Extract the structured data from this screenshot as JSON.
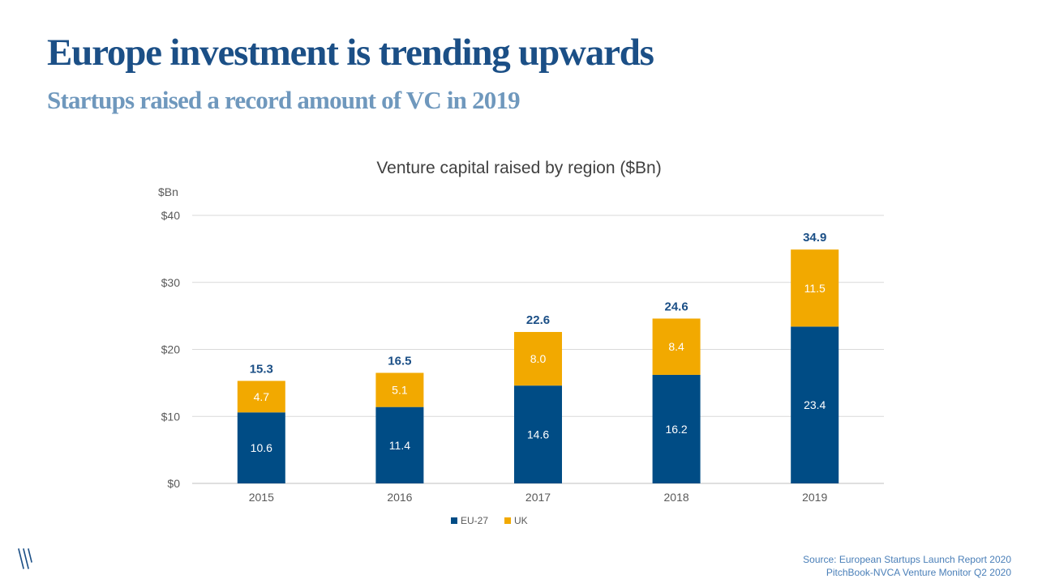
{
  "header": {
    "title": "Europe investment is trending upwards",
    "subtitle": "Startups raised a record amount of VC in 2019"
  },
  "chart_data": {
    "type": "bar",
    "stacked": true,
    "title": "Venture capital raised by region ($Bn)",
    "ylabel": "$Bn",
    "ylim": [
      0,
      40
    ],
    "yticks": [
      "$0",
      "$10",
      "$20",
      "$30",
      "$40"
    ],
    "grid": true,
    "legend_position": "bottom",
    "categories": [
      "2015",
      "2016",
      "2017",
      "2018",
      "2019"
    ],
    "series": [
      {
        "name": "EU-27",
        "color": "#004c85",
        "values": [
          10.6,
          11.4,
          14.6,
          16.2,
          23.4
        ],
        "labels": [
          "10.6",
          "11.4",
          "14.6",
          "16.2",
          "23.4"
        ]
      },
      {
        "name": "UK",
        "color": "#f2a900",
        "values": [
          4.7,
          5.1,
          8.0,
          8.4,
          11.5
        ],
        "labels": [
          "4.7",
          "5.1",
          "8.0",
          "8.4",
          "11.5"
        ]
      }
    ],
    "totals": [
      15.3,
      16.5,
      22.6,
      24.6,
      34.9
    ],
    "total_labels": [
      "15.3",
      "16.5",
      "22.6",
      "24.6",
      "34.9"
    ]
  },
  "source": {
    "line1": "Source: European Startups Launch Report 2020",
    "line2": "PitchBook-NVCA Venture Monitor Q2 2020"
  },
  "colors": {
    "title": "#1b4f86",
    "subtitle": "#6f98bd",
    "source": "#4a7fb8"
  },
  "logo": {
    "icon": "brand-slash-logo-icon"
  }
}
